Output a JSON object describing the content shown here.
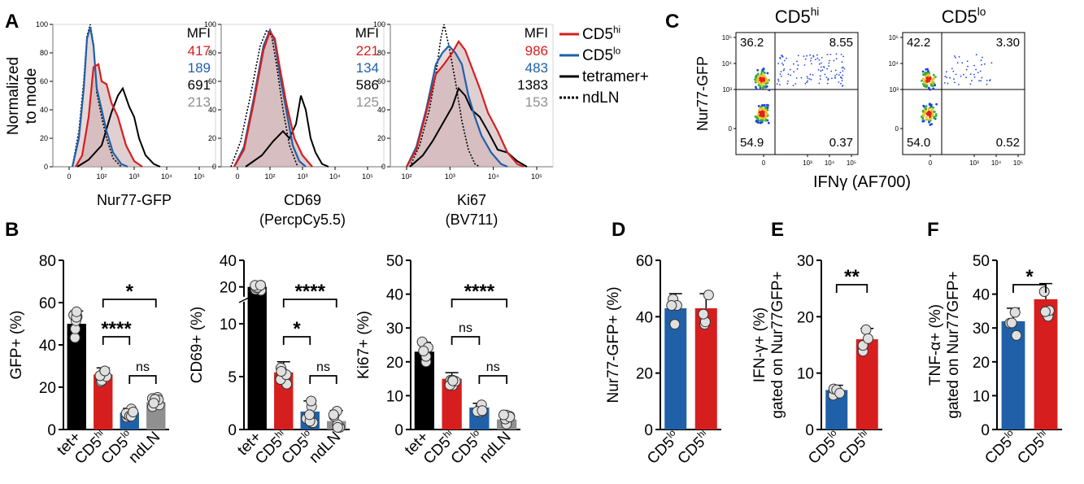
{
  "colors": {
    "hi": "#d71e1e",
    "lo": "#2060a8",
    "tet": "#000000",
    "nd": "#909090",
    "fill": "#c9a9ad"
  },
  "panels": {
    "A": "A",
    "B": "B",
    "C": "C",
    "D": "D",
    "E": "E",
    "F": "F"
  },
  "panelA": {
    "y_ticks": [
      "0",
      "20",
      "40",
      "60",
      "80",
      "100"
    ],
    "y_label_lines": [
      "Normalized",
      "to mode"
    ],
    "mfi_header": "MFI",
    "histograms": [
      {
        "xlabel": "Nur77-GFP",
        "xlabel2": "",
        "x_ticks": [
          "0",
          "10²",
          "10³",
          "10⁴",
          "10⁵"
        ],
        "mfi": [
          {
            "v": "417",
            "color": "hi"
          },
          {
            "v": "189",
            "color": "lo"
          },
          {
            "v": "691",
            "color": "tet"
          },
          {
            "v": "213",
            "color": "nd"
          }
        ],
        "curves": {
          "hi": [
            [
              0.14,
              0
            ],
            [
              0.18,
              8
            ],
            [
              0.22,
              35
            ],
            [
              0.25,
              70
            ],
            [
              0.28,
              72
            ],
            [
              0.3,
              60
            ],
            [
              0.33,
              58
            ],
            [
              0.36,
              45
            ],
            [
              0.4,
              35
            ],
            [
              0.45,
              15
            ],
            [
              0.5,
              4
            ],
            [
              0.55,
              0
            ]
          ],
          "lo": [
            [
              0.12,
              0
            ],
            [
              0.16,
              20
            ],
            [
              0.19,
              55
            ],
            [
              0.21,
              90
            ],
            [
              0.23,
              98
            ],
            [
              0.25,
              85
            ],
            [
              0.27,
              55
            ],
            [
              0.3,
              40
            ],
            [
              0.33,
              25
            ],
            [
              0.37,
              10
            ],
            [
              0.42,
              2
            ],
            [
              0.46,
              0
            ]
          ],
          "tet": [
            [
              0.15,
              0
            ],
            [
              0.22,
              5
            ],
            [
              0.3,
              15
            ],
            [
              0.36,
              38
            ],
            [
              0.4,
              50
            ],
            [
              0.43,
              55
            ],
            [
              0.47,
              42
            ],
            [
              0.5,
              35
            ],
            [
              0.53,
              20
            ],
            [
              0.57,
              8
            ],
            [
              0.62,
              2
            ],
            [
              0.66,
              0
            ]
          ],
          "nd": [
            [
              0.12,
              0
            ],
            [
              0.16,
              25
            ],
            [
              0.19,
              60
            ],
            [
              0.21,
              92
            ],
            [
              0.23,
              100
            ],
            [
              0.25,
              86
            ],
            [
              0.27,
              52
            ],
            [
              0.3,
              35
            ],
            [
              0.33,
              20
            ],
            [
              0.37,
              6
            ],
            [
              0.42,
              0
            ]
          ]
        }
      },
      {
        "xlabel": "CD69",
        "xlabel2": "(PercpCy5.5)",
        "x_ticks": [
          "0",
          "10²",
          "10³",
          "10⁴",
          "10⁵"
        ],
        "mfi": [
          {
            "v": "221",
            "color": "hi"
          },
          {
            "v": "134",
            "color": "lo"
          },
          {
            "v": "586",
            "color": "tet"
          },
          {
            "v": "125",
            "color": "nd"
          }
        ],
        "curves": {
          "hi": [
            [
              0.08,
              0
            ],
            [
              0.14,
              12
            ],
            [
              0.2,
              45
            ],
            [
              0.26,
              82
            ],
            [
              0.3,
              95
            ],
            [
              0.33,
              90
            ],
            [
              0.36,
              70
            ],
            [
              0.4,
              45
            ],
            [
              0.45,
              20
            ],
            [
              0.5,
              8
            ],
            [
              0.56,
              0
            ]
          ],
          "lo": [
            [
              0.08,
              0
            ],
            [
              0.14,
              14
            ],
            [
              0.2,
              48
            ],
            [
              0.26,
              85
            ],
            [
              0.3,
              96
            ],
            [
              0.33,
              88
            ],
            [
              0.36,
              65
            ],
            [
              0.4,
              40
            ],
            [
              0.44,
              15
            ],
            [
              0.48,
              4
            ],
            [
              0.52,
              0
            ]
          ],
          "tet": [
            [
              0.15,
              0
            ],
            [
              0.25,
              8
            ],
            [
              0.32,
              18
            ],
            [
              0.38,
              25
            ],
            [
              0.42,
              20
            ],
            [
              0.46,
              30
            ],
            [
              0.49,
              50
            ],
            [
              0.52,
              40
            ],
            [
              0.55,
              20
            ],
            [
              0.58,
              10
            ],
            [
              0.62,
              2
            ],
            [
              0.66,
              0
            ]
          ],
          "nd": [
            [
              0.06,
              0
            ],
            [
              0.12,
              18
            ],
            [
              0.18,
              50
            ],
            [
              0.24,
              85
            ],
            [
              0.28,
              96
            ],
            [
              0.31,
              92
            ],
            [
              0.34,
              72
            ],
            [
              0.38,
              40
            ],
            [
              0.42,
              15
            ],
            [
              0.47,
              0
            ]
          ]
        }
      },
      {
        "xlabel": "Ki67",
        "xlabel2": "(BV711)",
        "x_ticks": [
          "10²",
          "10³",
          "10⁴",
          "10⁵"
        ],
        "mfi": [
          {
            "v": "986",
            "color": "hi"
          },
          {
            "v": "483",
            "color": "lo"
          },
          {
            "v": "1383",
            "color": "tet"
          },
          {
            "v": "153",
            "color": "nd"
          }
        ],
        "curves": {
          "hi": [
            [
              0.1,
              0
            ],
            [
              0.16,
              12
            ],
            [
              0.22,
              38
            ],
            [
              0.28,
              65
            ],
            [
              0.33,
              72
            ],
            [
              0.38,
              80
            ],
            [
              0.42,
              88
            ],
            [
              0.46,
              82
            ],
            [
              0.5,
              70
            ],
            [
              0.55,
              55
            ],
            [
              0.6,
              38
            ],
            [
              0.66,
              25
            ],
            [
              0.72,
              10
            ],
            [
              0.78,
              2
            ],
            [
              0.82,
              0
            ]
          ],
          "lo": [
            [
              0.1,
              0
            ],
            [
              0.16,
              14
            ],
            [
              0.22,
              40
            ],
            [
              0.28,
              72
            ],
            [
              0.32,
              80
            ],
            [
              0.36,
              85
            ],
            [
              0.4,
              80
            ],
            [
              0.44,
              72
            ],
            [
              0.48,
              50
            ],
            [
              0.52,
              35
            ],
            [
              0.56,
              22
            ],
            [
              0.62,
              10
            ],
            [
              0.68,
              2
            ],
            [
              0.72,
              0
            ]
          ],
          "tet": [
            [
              0.12,
              0
            ],
            [
              0.2,
              8
            ],
            [
              0.26,
              18
            ],
            [
              0.32,
              30
            ],
            [
              0.38,
              42
            ],
            [
              0.42,
              55
            ],
            [
              0.46,
              50
            ],
            [
              0.5,
              40
            ],
            [
              0.55,
              35
            ],
            [
              0.6,
              25
            ],
            [
              0.66,
              12
            ],
            [
              0.72,
              10
            ],
            [
              0.78,
              4
            ],
            [
              0.84,
              0
            ]
          ],
          "nd": [
            [
              0.12,
              0
            ],
            [
              0.18,
              15
            ],
            [
              0.24,
              40
            ],
            [
              0.28,
              65
            ],
            [
              0.31,
              90
            ],
            [
              0.33,
              100
            ],
            [
              0.36,
              85
            ],
            [
              0.4,
              60
            ],
            [
              0.44,
              32
            ],
            [
              0.48,
              12
            ],
            [
              0.52,
              2
            ],
            [
              0.55,
              0
            ]
          ]
        }
      }
    ],
    "legend": [
      {
        "label": "CD5",
        "sup": "hi",
        "style": "hi"
      },
      {
        "label": "CD5",
        "sup": "lo",
        "style": "lo"
      },
      {
        "label": "tetramer+",
        "sup": "",
        "style": "tet"
      },
      {
        "label": "ndLN",
        "sup": "",
        "style": "nd"
      }
    ]
  },
  "panelC": {
    "titles": [
      {
        "t": "CD5",
        "sup": "hi"
      },
      {
        "t": "CD5",
        "sup": "lo"
      }
    ],
    "ylabel": "Nur77-GFP",
    "xlabel": "IFNγ (AF700)",
    "quadrants": [
      [
        "36.2",
        "8.55",
        "54.9",
        "0.37"
      ],
      [
        "42.2",
        "3.30",
        "54.0",
        "0.52"
      ]
    ],
    "y_ticks": [
      "10⁵",
      "10⁴",
      "10³",
      "0"
    ],
    "x_ticks": [
      "0",
      "10³",
      "10⁴",
      "10⁵"
    ]
  },
  "chart_data": [
    {
      "type": "bar",
      "panel": "B",
      "categories": [
        "tet+",
        "CD5hi",
        "CD5lo",
        "ndLN"
      ],
      "values": [
        50,
        26,
        8,
        13
      ],
      "ylabel": "GFP+ (%)",
      "ylim": [
        0,
        80
      ],
      "y_ticks": [
        "0",
        "20",
        "40",
        "60",
        "80"
      ],
      "sig": [
        {
          "from": 1,
          "to": 3,
          "label": "*"
        },
        {
          "from": 1,
          "to": 2,
          "label": "****"
        },
        {
          "from": 2,
          "to": 3,
          "label": "ns"
        }
      ]
    },
    {
      "type": "bar",
      "panel": "B",
      "categories": [
        "tet+",
        "CD5hi",
        "CD5lo",
        "ndLN"
      ],
      "values": [
        20,
        5.4,
        1.7,
        0.8
      ],
      "ylabel": "CD69+ (%)",
      "ylim": [
        0,
        40
      ],
      "y_ticks": [
        "0",
        "5",
        "10",
        "20",
        "40"
      ],
      "sig": [
        {
          "from": 1,
          "to": 3,
          "label": "****"
        },
        {
          "from": 1,
          "to": 2,
          "label": "*"
        },
        {
          "from": 2,
          "to": 3,
          "label": "ns"
        }
      ]
    },
    {
      "type": "bar",
      "panel": "B",
      "categories": [
        "tet+",
        "CD5hi",
        "CD5lo",
        "ndLN"
      ],
      "values": [
        23,
        15,
        6.5,
        3
      ],
      "ylabel": "Ki67+ (%)",
      "ylim": [
        0,
        50
      ],
      "y_ticks": [
        "0",
        "10",
        "20",
        "30",
        "40",
        "50"
      ],
      "sig": [
        {
          "from": 1,
          "to": 3,
          "label": "****"
        },
        {
          "from": 1,
          "to": 2,
          "label": "ns"
        },
        {
          "from": 2,
          "to": 3,
          "label": "ns"
        }
      ]
    },
    {
      "type": "bar",
      "panel": "D",
      "categories": [
        "CD5lo",
        "CD5hi"
      ],
      "values": [
        43,
        43
      ],
      "ylabel": "Nur77-GFP+ (%)",
      "ylim": [
        0,
        60
      ],
      "y_ticks": [
        "0",
        "20",
        "40",
        "60"
      ],
      "sig": []
    },
    {
      "type": "bar",
      "panel": "E",
      "categories": [
        "CD5lo",
        "CD5hi"
      ],
      "values": [
        7,
        16
      ],
      "ylabel": "IFN-γ+ (%)",
      "ylabel2": "gated on Nur77GFP+",
      "ylim": [
        0,
        30
      ],
      "y_ticks": [
        "0",
        "10",
        "20",
        "30"
      ],
      "sig": [
        {
          "from": 0,
          "to": 1,
          "label": "**"
        }
      ]
    },
    {
      "type": "bar",
      "panel": "F",
      "categories": [
        "CD5lo",
        "CD5hi"
      ],
      "values": [
        32,
        38.5
      ],
      "ylabel": "TNF-α+ (%)",
      "ylabel2": "gated on Nur77GFP+",
      "ylim": [
        0,
        50
      ],
      "y_ticks": [
        "0",
        "10",
        "20",
        "30",
        "40",
        "50"
      ],
      "sig": [
        {
          "from": 0,
          "to": 1,
          "label": "*"
        }
      ]
    }
  ]
}
